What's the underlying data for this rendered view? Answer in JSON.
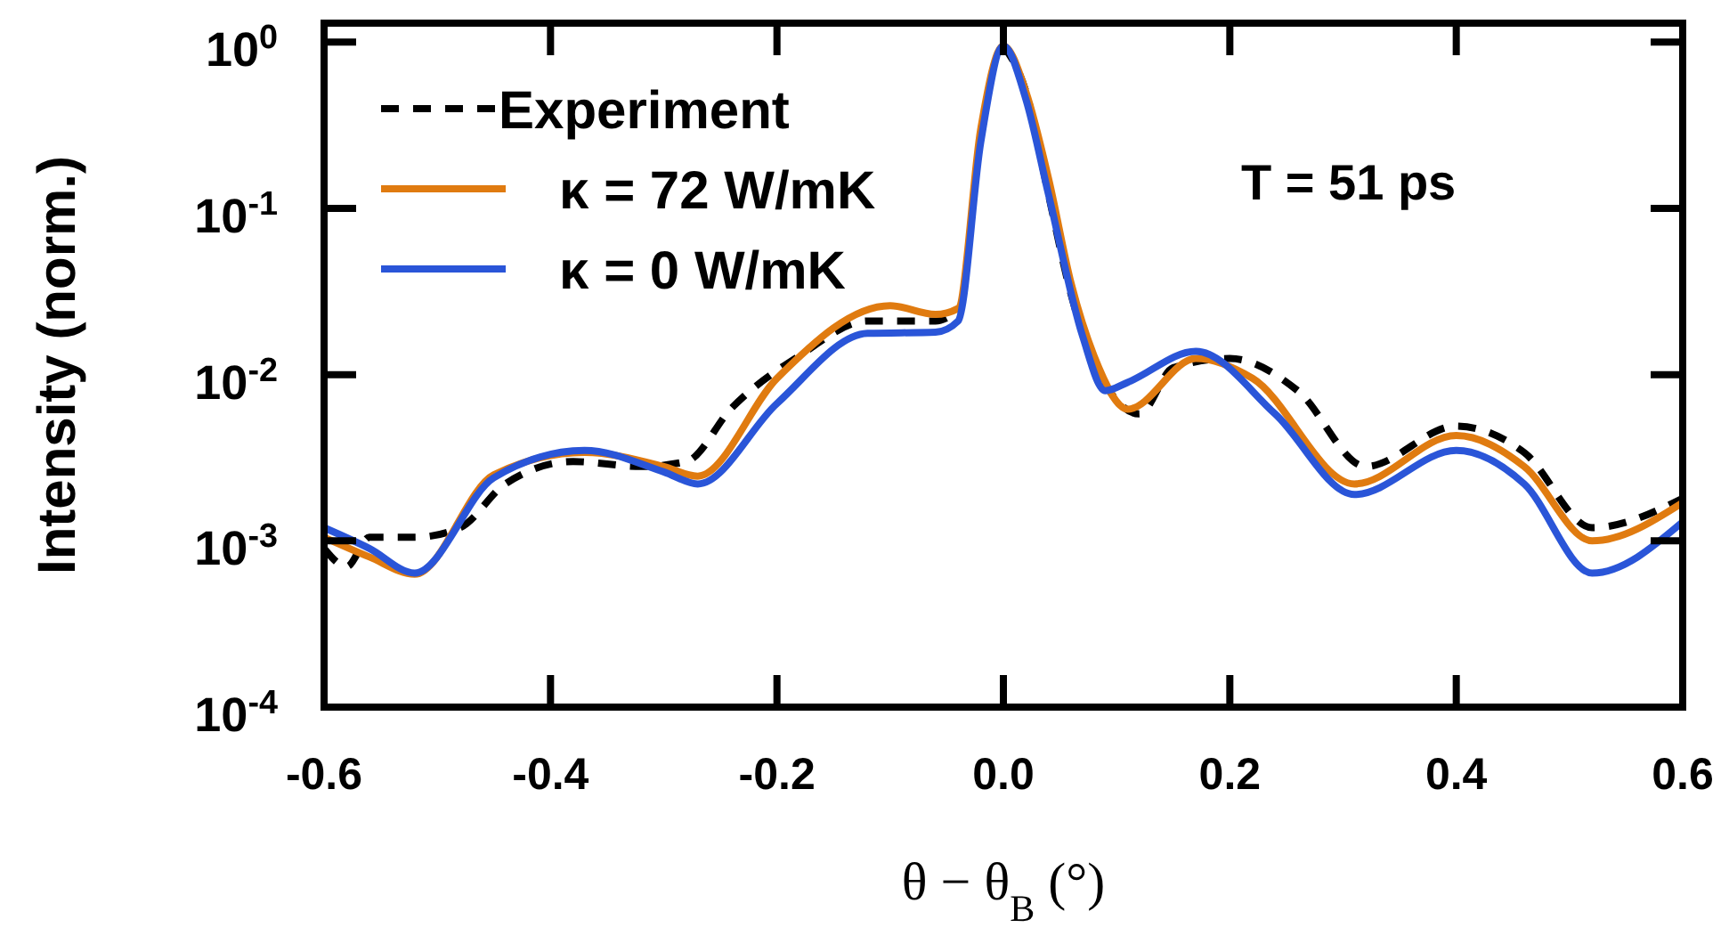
{
  "chart_data": {
    "type": "line",
    "xlabel": "θ − θ$_{B}$ (°)",
    "ylabel": "Intensity (norm.)",
    "log": "y",
    "xlim": [
      -0.6,
      0.6
    ],
    "xticks": [
      {
        "value": -0.6,
        "label": "-0.6"
      },
      {
        "value": -0.4,
        "label": "-0.4"
      },
      {
        "value": -0.2,
        "label": "-0.2"
      },
      {
        "value": 0,
        "label": "0.0"
      },
      {
        "value": 0.2,
        "label": "0.2"
      },
      {
        "value": 0.4,
        "label": "0.4"
      },
      {
        "value": 0.6,
        "label": "0.6"
      }
    ],
    "ylim": [
      0.0001,
      1.3
    ],
    "yticks": [
      {
        "value": 0.0001,
        "label": "10$^{-4}$"
      },
      {
        "value": 0.001,
        "label": "10$^{-3}$"
      },
      {
        "value": 0.01,
        "label": "10$^{-2}$"
      },
      {
        "value": 0.1,
        "label": "10$^{-1}$"
      },
      {
        "value": 1,
        "label": "10$^{0}$"
      }
    ],
    "grid": false,
    "legend": "top left",
    "marker": "none",
    "annotations": [
      "T = 51 ps"
    ],
    "series": [
      {
        "name": "Experiment",
        "color": "#000000",
        "line_style": "dashed",
        "x": [
          -0.6,
          -0.58,
          -0.56,
          -0.52,
          -0.48,
          -0.44,
          -0.38,
          -0.32,
          -0.28,
          -0.24,
          -0.18,
          -0.12,
          -0.06,
          -0.04,
          -0.02,
          0,
          0.02,
          0.04,
          0.06,
          0.08,
          0.1,
          0.12,
          0.15,
          0.2,
          0.26,
          0.32,
          0.4,
          0.46,
          0.52,
          0.6
        ],
        "values": [
          0.0009,
          0.0007,
          0.00105,
          0.00105,
          0.0012,
          0.0022,
          0.003,
          0.0028,
          0.003,
          0.0063,
          0.013,
          0.021,
          0.021,
          0.024,
          null,
          0.95,
          0.5,
          0.12,
          0.03,
          0.012,
          0.007,
          0.0058,
          0.011,
          0.0125,
          0.008,
          0.0028,
          0.0049,
          0.0034,
          0.0012,
          0.0018
        ]
      },
      {
        "name": "κ = 72 W/mK",
        "color": "#e07b10",
        "line_style": "solid",
        "x": [
          -0.6,
          -0.56,
          -0.52,
          -0.45,
          -0.37,
          -0.3,
          -0.27,
          -0.2,
          -0.1,
          -0.06,
          -0.04,
          -0.02,
          0,
          0.02,
          0.04,
          0.06,
          0.08,
          0.11,
          0.17,
          0.22,
          0.31,
          0.4,
          0.46,
          0.52,
          0.6
        ],
        "values": [
          0.00105,
          0.0008,
          0.00063,
          0.0025,
          0.0034,
          0.0028,
          0.00245,
          0.0095,
          0.026,
          0.023,
          0.025,
          0.3,
          0.95,
          0.5,
          0.15,
          0.035,
          0.013,
          0.0062,
          0.0125,
          0.0095,
          0.0022,
          0.0043,
          0.0028,
          0.001,
          0.0017
        ]
      },
      {
        "name": "κ = 0 W/mK",
        "color": "#2a55d8",
        "line_style": "solid",
        "x": [
          -0.6,
          -0.56,
          -0.52,
          -0.45,
          -0.37,
          -0.3,
          -0.27,
          -0.2,
          -0.12,
          -0.06,
          -0.04,
          -0.02,
          0,
          0.02,
          0.04,
          0.07,
          0.09,
          0.11,
          0.17,
          0.24,
          0.31,
          0.4,
          0.46,
          0.52,
          0.6
        ],
        "values": [
          0.0012,
          0.0009,
          0.00064,
          0.0024,
          0.0035,
          0.0026,
          0.0022,
          0.0067,
          0.0177,
          0.018,
          0.021,
          0.25,
          0.95,
          0.45,
          0.12,
          0.017,
          0.008,
          0.009,
          0.0138,
          0.0058,
          0.0019,
          0.0035,
          0.0022,
          0.00064,
          0.0013
        ]
      }
    ]
  }
}
